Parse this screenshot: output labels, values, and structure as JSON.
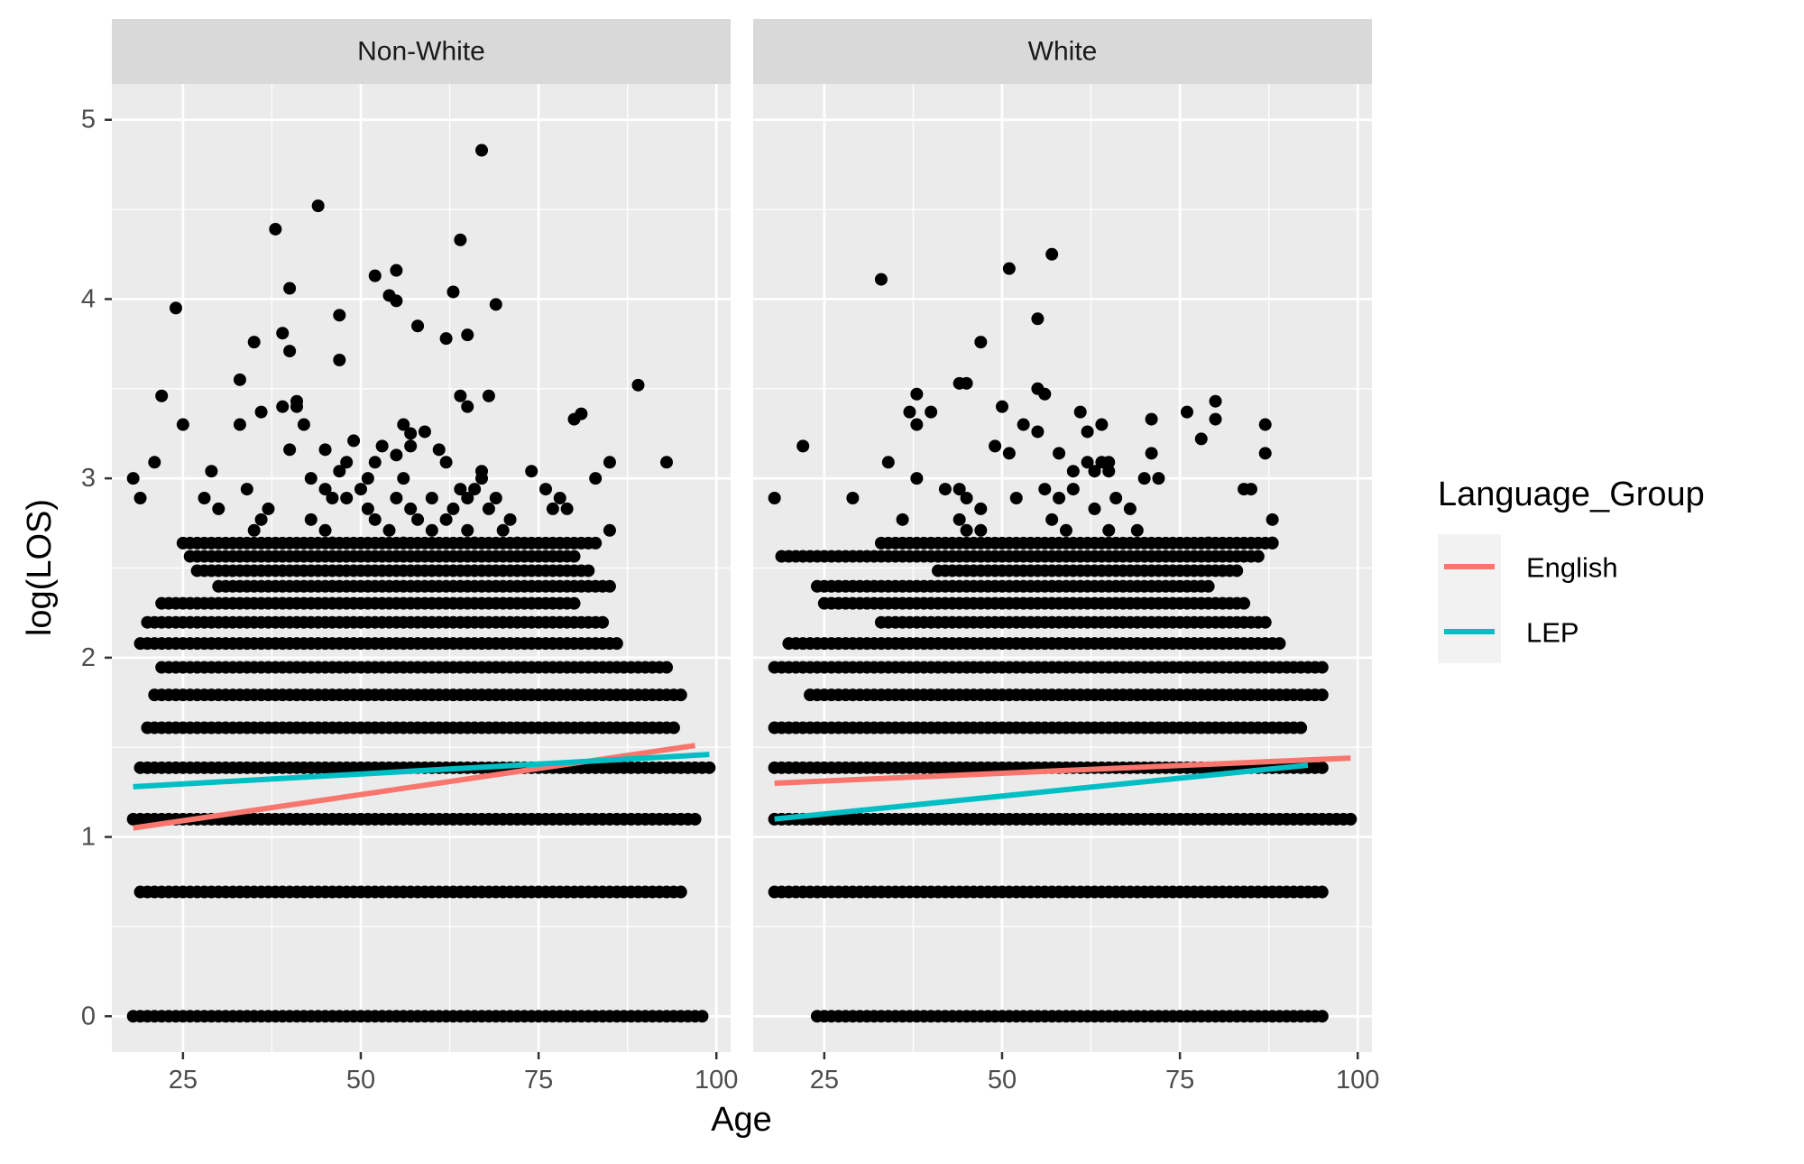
{
  "chart_data": {
    "type": "scatter",
    "xlabel": "Age",
    "ylabel": "log(LOS)",
    "xlim": [
      15,
      102
    ],
    "ylim": [
      -0.2,
      5.2
    ],
    "x_ticks": [
      25,
      50,
      75,
      100
    ],
    "x_tick_labels": [
      "25",
      "50",
      "75",
      "100"
    ],
    "y_ticks": [
      0,
      1,
      2,
      3,
      4,
      5
    ],
    "y_tick_labels": [
      "0",
      "1",
      "2",
      "3",
      "4",
      "5"
    ],
    "grid": true,
    "legend": {
      "title": "Language_Group",
      "position": "right",
      "entries": [
        {
          "name": "English",
          "color": "#F8766D"
        },
        {
          "name": "LEP",
          "color": "#00BFC4"
        }
      ]
    },
    "point_color": "#000000",
    "panels": [
      {
        "label": "Non-White",
        "fit_lines": [
          {
            "name": "English",
            "x": [
              18,
              97
            ],
            "y": [
              1.05,
              1.51
            ]
          },
          {
            "name": "LEP",
            "x": [
              18,
              99
            ],
            "y": [
              1.28,
              1.46
            ]
          }
        ],
        "rows": [
          {
            "y": 0,
            "x_from": 18,
            "x_to": 98
          },
          {
            "y": 0.693,
            "x_from": 19,
            "x_to": 95
          },
          {
            "y": 1.099,
            "x_from": 18,
            "x_to": 97
          },
          {
            "y": 1.386,
            "x_from": 19,
            "x_to": 99
          },
          {
            "y": 1.609,
            "x_from": 20,
            "x_to": 94
          },
          {
            "y": 1.792,
            "x_from": 21,
            "x_to": 95
          },
          {
            "y": 1.946,
            "x_from": 22,
            "x_to": 93
          },
          {
            "y": 2.079,
            "x_from": 19,
            "x_to": 86
          },
          {
            "y": 2.197,
            "x_from": 20,
            "x_to": 84
          },
          {
            "y": 2.303,
            "x_from": 22,
            "x_to": 80
          },
          {
            "y": 2.398,
            "x_from": 30,
            "x_to": 85
          },
          {
            "y": 2.485,
            "x_from": 27,
            "x_to": 82
          },
          {
            "y": 2.565,
            "x_from": 26,
            "x_to": 80
          },
          {
            "y": 2.639,
            "x_from": 25,
            "x_to": 83
          }
        ],
        "points": [
          {
            "x": 67,
            "y": 4.83
          },
          {
            "x": 44,
            "y": 4.52
          },
          {
            "x": 38,
            "y": 4.39
          },
          {
            "x": 64,
            "y": 4.33
          },
          {
            "x": 55,
            "y": 4.16
          },
          {
            "x": 52,
            "y": 4.13
          },
          {
            "x": 40,
            "y": 4.06
          },
          {
            "x": 63,
            "y": 4.04
          },
          {
            "x": 54,
            "y": 4.02
          },
          {
            "x": 55,
            "y": 3.99
          },
          {
            "x": 69,
            "y": 3.97
          },
          {
            "x": 24,
            "y": 3.95
          },
          {
            "x": 47,
            "y": 3.91
          },
          {
            "x": 58,
            "y": 3.85
          },
          {
            "x": 39,
            "y": 3.81
          },
          {
            "x": 65,
            "y": 3.8
          },
          {
            "x": 62,
            "y": 3.78
          },
          {
            "x": 35,
            "y": 3.76
          },
          {
            "x": 40,
            "y": 3.71
          },
          {
            "x": 47,
            "y": 3.66
          },
          {
            "x": 33,
            "y": 3.55
          },
          {
            "x": 89,
            "y": 3.52
          },
          {
            "x": 22,
            "y": 3.46
          },
          {
            "x": 64,
            "y": 3.46
          },
          {
            "x": 68,
            "y": 3.46
          },
          {
            "x": 41,
            "y": 3.43
          },
          {
            "x": 41,
            "y": 3.4
          },
          {
            "x": 39,
            "y": 3.4
          },
          {
            "x": 65,
            "y": 3.4
          },
          {
            "x": 36,
            "y": 3.37
          },
          {
            "x": 81,
            "y": 3.36
          },
          {
            "x": 80,
            "y": 3.33
          },
          {
            "x": 25,
            "y": 3.3
          },
          {
            "x": 33,
            "y": 3.3
          },
          {
            "x": 42,
            "y": 3.3
          },
          {
            "x": 56,
            "y": 3.3
          },
          {
            "x": 59,
            "y": 3.26
          },
          {
            "x": 57,
            "y": 3.25
          },
          {
            "x": 49,
            "y": 3.21
          },
          {
            "x": 53,
            "y": 3.18
          },
          {
            "x": 57,
            "y": 3.18
          },
          {
            "x": 40,
            "y": 3.16
          },
          {
            "x": 45,
            "y": 3.16
          },
          {
            "x": 61,
            "y": 3.16
          },
          {
            "x": 55,
            "y": 3.13
          },
          {
            "x": 21,
            "y": 3.09
          },
          {
            "x": 48,
            "y": 3.09
          },
          {
            "x": 52,
            "y": 3.09
          },
          {
            "x": 62,
            "y": 3.09
          },
          {
            "x": 85,
            "y": 3.09
          },
          {
            "x": 93,
            "y": 3.09
          },
          {
            "x": 29,
            "y": 3.04
          },
          {
            "x": 47,
            "y": 3.04
          },
          {
            "x": 67,
            "y": 3.04
          },
          {
            "x": 74,
            "y": 3.04
          },
          {
            "x": 18,
            "y": 3.0
          },
          {
            "x": 43,
            "y": 3.0
          },
          {
            "x": 51,
            "y": 3.0
          },
          {
            "x": 56,
            "y": 3.0
          },
          {
            "x": 67,
            "y": 3.0
          },
          {
            "x": 83,
            "y": 3.0
          },
          {
            "x": 34,
            "y": 2.94
          },
          {
            "x": 45,
            "y": 2.94
          },
          {
            "x": 50,
            "y": 2.94
          },
          {
            "x": 64,
            "y": 2.94
          },
          {
            "x": 66,
            "y": 2.94
          },
          {
            "x": 76,
            "y": 2.94
          },
          {
            "x": 19,
            "y": 2.89
          },
          {
            "x": 28,
            "y": 2.89
          },
          {
            "x": 46,
            "y": 2.89
          },
          {
            "x": 48,
            "y": 2.89
          },
          {
            "x": 55,
            "y": 2.89
          },
          {
            "x": 60,
            "y": 2.89
          },
          {
            "x": 65,
            "y": 2.89
          },
          {
            "x": 69,
            "y": 2.89
          },
          {
            "x": 78,
            "y": 2.89
          },
          {
            "x": 30,
            "y": 2.83
          },
          {
            "x": 37,
            "y": 2.83
          },
          {
            "x": 51,
            "y": 2.83
          },
          {
            "x": 57,
            "y": 2.83
          },
          {
            "x": 63,
            "y": 2.83
          },
          {
            "x": 68,
            "y": 2.83
          },
          {
            "x": 77,
            "y": 2.83
          },
          {
            "x": 79,
            "y": 2.83
          },
          {
            "x": 36,
            "y": 2.77
          },
          {
            "x": 43,
            "y": 2.77
          },
          {
            "x": 52,
            "y": 2.77
          },
          {
            "x": 58,
            "y": 2.77
          },
          {
            "x": 62,
            "y": 2.77
          },
          {
            "x": 71,
            "y": 2.77
          },
          {
            "x": 35,
            "y": 2.71
          },
          {
            "x": 45,
            "y": 2.71
          },
          {
            "x": 54,
            "y": 2.71
          },
          {
            "x": 60,
            "y": 2.71
          },
          {
            "x": 65,
            "y": 2.71
          },
          {
            "x": 70,
            "y": 2.71
          },
          {
            "x": 85,
            "y": 2.71
          },
          {
            "x": 46,
            "y": 2.64
          },
          {
            "x": 56,
            "y": 2.64
          },
          {
            "x": 66,
            "y": 2.64
          },
          {
            "x": 72,
            "y": 2.64
          }
        ]
      },
      {
        "label": "White",
        "fit_lines": [
          {
            "name": "English",
            "x": [
              18,
              99
            ],
            "y": [
              1.3,
              1.44
            ]
          },
          {
            "name": "LEP",
            "x": [
              18,
              93
            ],
            "y": [
              1.1,
              1.4
            ]
          }
        ],
        "rows": [
          {
            "y": 0,
            "x_from": 24,
            "x_to": 95
          },
          {
            "y": 0.693,
            "x_from": 18,
            "x_to": 95
          },
          {
            "y": 1.099,
            "x_from": 18,
            "x_to": 99
          },
          {
            "y": 1.386,
            "x_from": 18,
            "x_to": 95
          },
          {
            "y": 1.609,
            "x_from": 18,
            "x_to": 92
          },
          {
            "y": 1.792,
            "x_from": 23,
            "x_to": 95
          },
          {
            "y": 1.946,
            "x_from": 18,
            "x_to": 95
          },
          {
            "y": 2.079,
            "x_from": 20,
            "x_to": 89
          },
          {
            "y": 2.197,
            "x_from": 33,
            "x_to": 87
          },
          {
            "y": 2.303,
            "x_from": 25,
            "x_to": 84
          },
          {
            "y": 2.398,
            "x_from": 24,
            "x_to": 79
          },
          {
            "y": 2.485,
            "x_from": 41,
            "x_to": 83
          },
          {
            "y": 2.565,
            "x_from": 19,
            "x_to": 86
          },
          {
            "y": 2.639,
            "x_from": 33,
            "x_to": 88
          }
        ],
        "points": [
          {
            "x": 57,
            "y": 4.25
          },
          {
            "x": 51,
            "y": 4.17
          },
          {
            "x": 33,
            "y": 4.11
          },
          {
            "x": 55,
            "y": 3.89
          },
          {
            "x": 47,
            "y": 3.76
          },
          {
            "x": 44,
            "y": 3.53
          },
          {
            "x": 45,
            "y": 3.53
          },
          {
            "x": 55,
            "y": 3.5
          },
          {
            "x": 56,
            "y": 3.47
          },
          {
            "x": 38,
            "y": 3.47
          },
          {
            "x": 80,
            "y": 3.43
          },
          {
            "x": 50,
            "y": 3.4
          },
          {
            "x": 37,
            "y": 3.37
          },
          {
            "x": 40,
            "y": 3.37
          },
          {
            "x": 61,
            "y": 3.37
          },
          {
            "x": 76,
            "y": 3.37
          },
          {
            "x": 71,
            "y": 3.33
          },
          {
            "x": 80,
            "y": 3.33
          },
          {
            "x": 38,
            "y": 3.3
          },
          {
            "x": 53,
            "y": 3.3
          },
          {
            "x": 55,
            "y": 3.26
          },
          {
            "x": 62,
            "y": 3.26
          },
          {
            "x": 64,
            "y": 3.3
          },
          {
            "x": 87,
            "y": 3.3
          },
          {
            "x": 78,
            "y": 3.22
          },
          {
            "x": 22,
            "y": 3.18
          },
          {
            "x": 49,
            "y": 3.18
          },
          {
            "x": 58,
            "y": 3.14
          },
          {
            "x": 51,
            "y": 3.14
          },
          {
            "x": 71,
            "y": 3.14
          },
          {
            "x": 87,
            "y": 3.14
          },
          {
            "x": 34,
            "y": 3.09
          },
          {
            "x": 62,
            "y": 3.09
          },
          {
            "x": 64,
            "y": 3.09
          },
          {
            "x": 65,
            "y": 3.09
          },
          {
            "x": 60,
            "y": 3.04
          },
          {
            "x": 63,
            "y": 3.04
          },
          {
            "x": 65,
            "y": 3.04
          },
          {
            "x": 38,
            "y": 3.0
          },
          {
            "x": 70,
            "y": 3.0
          },
          {
            "x": 72,
            "y": 3.0
          },
          {
            "x": 42,
            "y": 2.94
          },
          {
            "x": 44,
            "y": 2.94
          },
          {
            "x": 56,
            "y": 2.94
          },
          {
            "x": 60,
            "y": 2.94
          },
          {
            "x": 84,
            "y": 2.94
          },
          {
            "x": 85,
            "y": 2.94
          },
          {
            "x": 18,
            "y": 2.89
          },
          {
            "x": 29,
            "y": 2.89
          },
          {
            "x": 45,
            "y": 2.89
          },
          {
            "x": 52,
            "y": 2.89
          },
          {
            "x": 58,
            "y": 2.89
          },
          {
            "x": 66,
            "y": 2.89
          },
          {
            "x": 47,
            "y": 2.83
          },
          {
            "x": 63,
            "y": 2.83
          },
          {
            "x": 68,
            "y": 2.83
          },
          {
            "x": 36,
            "y": 2.77
          },
          {
            "x": 44,
            "y": 2.77
          },
          {
            "x": 57,
            "y": 2.77
          },
          {
            "x": 88,
            "y": 2.77
          },
          {
            "x": 45,
            "y": 2.71
          },
          {
            "x": 47,
            "y": 2.71
          },
          {
            "x": 59,
            "y": 2.71
          },
          {
            "x": 65,
            "y": 2.71
          },
          {
            "x": 69,
            "y": 2.71
          },
          {
            "x": 79,
            "y": 2.64
          },
          {
            "x": 88,
            "y": 2.64
          }
        ]
      }
    ]
  }
}
